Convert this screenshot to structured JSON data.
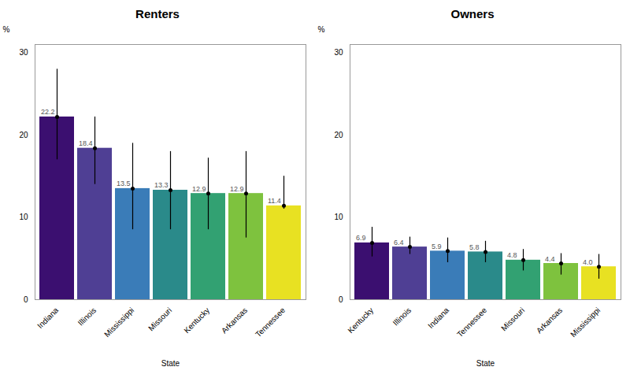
{
  "chart_data": [
    {
      "type": "bar",
      "title": "Renters",
      "categories": [
        "Indiana",
        "Illinois",
        "Mississippi",
        "Missouri",
        "Kentucky",
        "Arkansas",
        "Tennessee"
      ],
      "values": [
        22.2,
        18.4,
        13.5,
        13.3,
        12.9,
        12.9,
        11.4
      ],
      "value_labels": [
        "22.2",
        "18.4",
        "13.5",
        "13.3",
        "12.9",
        "12.9",
        "11.4"
      ],
      "err_upper": [
        5.8,
        3.8,
        5.5,
        4.7,
        4.3,
        5.1,
        3.6
      ],
      "err_lower": [
        5.2,
        4.4,
        5.0,
        4.8,
        4.4,
        5.4,
        0.4
      ],
      "colors": [
        "#3b0f70",
        "#4f3f94",
        "#3a7cb8",
        "#2a8a8a",
        "#32a172",
        "#7ec23e",
        "#e8e122"
      ],
      "xlabel": "State",
      "ylabel": "%",
      "ylim": [
        0,
        31
      ],
      "yticks": [
        0,
        10,
        20,
        30
      ],
      "grid": false,
      "data_labels": true
    },
    {
      "type": "bar",
      "title": "Owners",
      "categories": [
        "Kentucky",
        "Illinois",
        "Indiana",
        "Tennessee",
        "Missouri",
        "Arkansas",
        "Mississippi"
      ],
      "values": [
        6.9,
        6.4,
        5.9,
        5.8,
        4.8,
        4.4,
        4.0
      ],
      "value_labels": [
        "6.9",
        "6.4",
        "5.9",
        "5.8",
        "4.8",
        "4.4",
        "4.0"
      ],
      "err_upper": [
        1.9,
        1.2,
        1.6,
        1.3,
        1.3,
        1.2,
        1.5
      ],
      "err_lower": [
        1.7,
        0.9,
        1.4,
        1.3,
        1.3,
        1.4,
        1.5
      ],
      "colors": [
        "#3b0f70",
        "#4f3f94",
        "#3a7cb8",
        "#2a8a8a",
        "#32a172",
        "#7ec23e",
        "#e8e122"
      ],
      "xlabel": "State",
      "ylabel": "%",
      "ylim": [
        0,
        31
      ],
      "yticks": [
        0,
        10,
        20,
        30
      ],
      "grid": false,
      "data_labels": true
    }
  ]
}
